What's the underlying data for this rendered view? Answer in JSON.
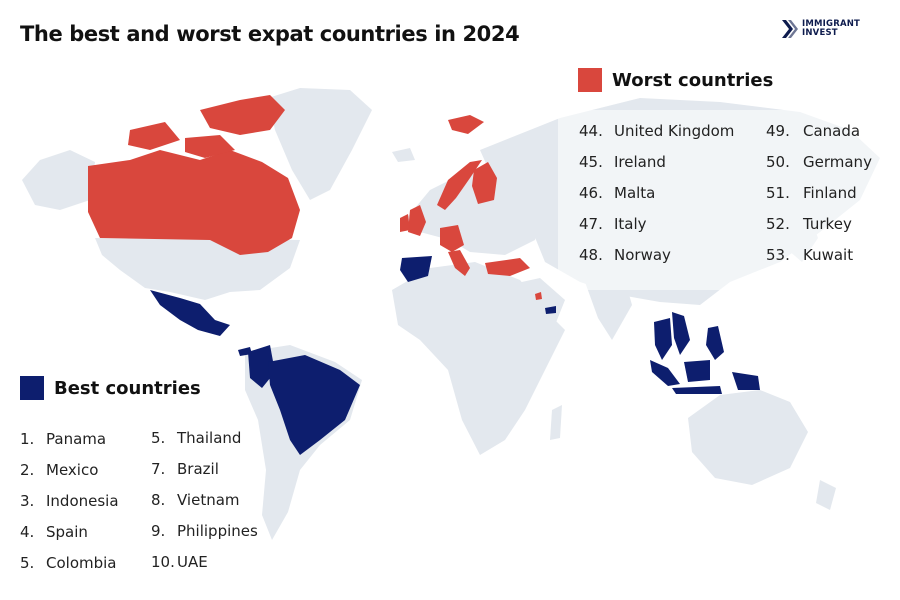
{
  "title": "The best and worst expat countries in 2024",
  "brand": {
    "line1": "IMMIGRANT",
    "line2": "INVEST"
  },
  "colors": {
    "best": "#0d1e6e",
    "worst": "#d9473d",
    "land": "#e3e8ee",
    "panel": "#ffffff"
  },
  "worst": {
    "title": "Worst countries",
    "col1": [
      {
        "num": "44.",
        "name": "United Kingdom"
      },
      {
        "num": "45.",
        "name": "Ireland"
      },
      {
        "num": "46.",
        "name": "Malta"
      },
      {
        "num": "47.",
        "name": "Italy"
      },
      {
        "num": "48.",
        "name": "Norway"
      }
    ],
    "col2": [
      {
        "num": "49.",
        "name": "Canada"
      },
      {
        "num": "50.",
        "name": "Germany"
      },
      {
        "num": "51.",
        "name": "Finland"
      },
      {
        "num": "52.",
        "name": "Turkey"
      },
      {
        "num": "53.",
        "name": "Kuwait"
      }
    ]
  },
  "best": {
    "title": "Best countries",
    "col1": [
      {
        "num": "1.",
        "name": "Panama"
      },
      {
        "num": "2.",
        "name": "Mexico"
      },
      {
        "num": "3.",
        "name": "Indonesia"
      },
      {
        "num": "4.",
        "name": "Spain"
      },
      {
        "num": "5.",
        "name": "Colombia"
      }
    ],
    "col2": [
      {
        "num": "5.",
        "name": "Thailand"
      },
      {
        "num": "7.",
        "name": "Brazil"
      },
      {
        "num": "8.",
        "name": "Vietnam"
      },
      {
        "num": "9.",
        "name": "Philippines"
      },
      {
        "num": "10.",
        "name": "UAE"
      }
    ]
  }
}
